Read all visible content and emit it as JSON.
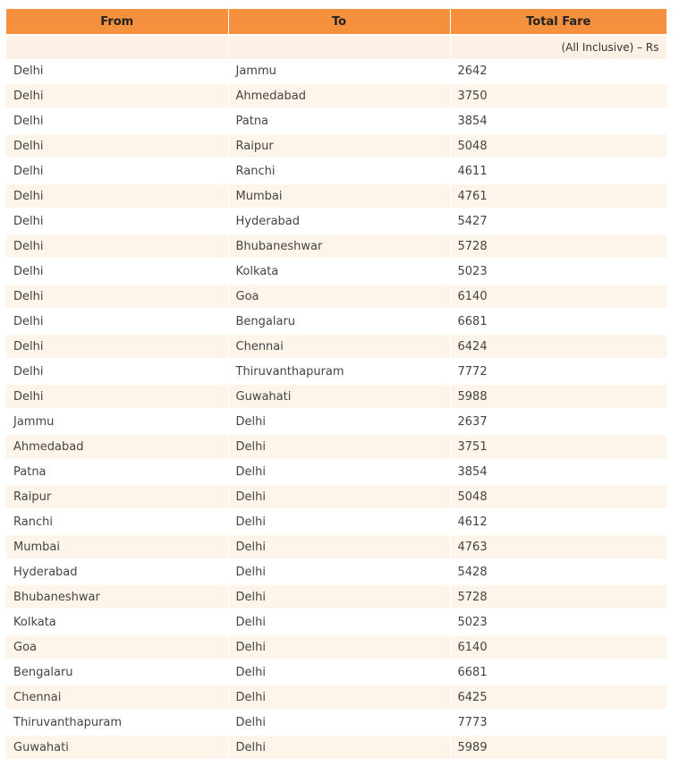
{
  "table": {
    "headers": [
      "From",
      "To",
      "Total Fare"
    ],
    "unit_note": "(All Inclusive) – Rs",
    "colors": {
      "header_bg": "#f4903e",
      "row_alt_bg": "#fdf4ea"
    },
    "rows": [
      [
        "Delhi",
        "Jammu",
        "2642"
      ],
      [
        "Delhi",
        "Ahmedabad",
        "3750"
      ],
      [
        "Delhi",
        "Patna",
        "3854"
      ],
      [
        "Delhi",
        "Raipur",
        "5048"
      ],
      [
        "Delhi",
        "Ranchi",
        "4611"
      ],
      [
        "Delhi",
        "Mumbai",
        "4761"
      ],
      [
        "Delhi",
        "Hyderabad",
        "5427"
      ],
      [
        "Delhi",
        "Bhubaneshwar",
        "5728"
      ],
      [
        "Delhi",
        "Kolkata",
        "5023"
      ],
      [
        "Delhi",
        "Goa",
        "6140"
      ],
      [
        "Delhi",
        "Bengalaru",
        "6681"
      ],
      [
        "Delhi",
        "Chennai",
        "6424"
      ],
      [
        "Delhi",
        "Thiruvanthapuram",
        "7772"
      ],
      [
        "Delhi",
        "Guwahati",
        "5988"
      ],
      [
        "Jammu",
        "Delhi",
        "2637"
      ],
      [
        "Ahmedabad",
        "Delhi",
        "3751"
      ],
      [
        "Patna",
        "Delhi",
        "3854"
      ],
      [
        "Raipur",
        "Delhi",
        "5048"
      ],
      [
        "Ranchi",
        "Delhi",
        "4612"
      ],
      [
        "Mumbai",
        "Delhi",
        "4763"
      ],
      [
        "Hyderabad",
        "Delhi",
        "5428"
      ],
      [
        "Bhubaneshwar",
        "Delhi",
        "5728"
      ],
      [
        "Kolkata",
        "Delhi",
        "5023"
      ],
      [
        "Goa",
        "Delhi",
        "6140"
      ],
      [
        "Bengalaru",
        "Delhi",
        "6681"
      ],
      [
        "Chennai",
        "Delhi",
        "6425"
      ],
      [
        "Thiruvanthapuram",
        "Delhi",
        "7773"
      ],
      [
        "Guwahati",
        "Delhi",
        "5989"
      ]
    ]
  }
}
